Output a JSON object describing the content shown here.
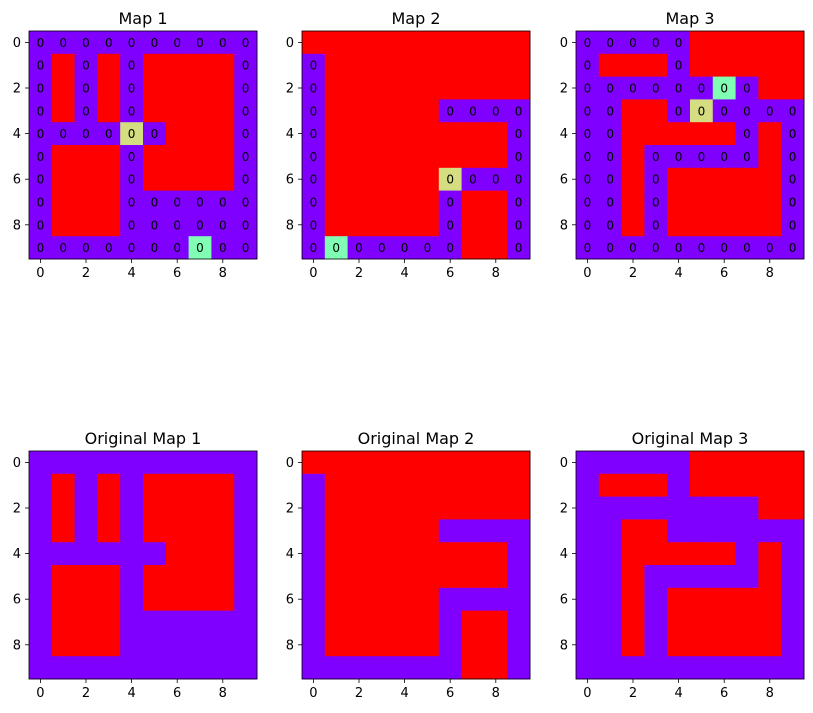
{
  "chart_data": [
    {
      "type": "heatmap",
      "title": "Map 1",
      "xticks": [
        "0",
        "2",
        "4",
        "6",
        "8"
      ],
      "yticks": [
        "0",
        "2",
        "4",
        "6",
        "8"
      ],
      "grid": [
        [
          1,
          1,
          1,
          1,
          1,
          1,
          1,
          1,
          1,
          1
        ],
        [
          1,
          2,
          1,
          2,
          1,
          2,
          2,
          2,
          2,
          1
        ],
        [
          1,
          2,
          1,
          2,
          1,
          2,
          2,
          2,
          2,
          1
        ],
        [
          1,
          2,
          1,
          2,
          1,
          2,
          2,
          2,
          2,
          1
        ],
        [
          1,
          1,
          1,
          1,
          4,
          1,
          2,
          2,
          2,
          1
        ],
        [
          1,
          2,
          2,
          2,
          1,
          2,
          2,
          2,
          2,
          1
        ],
        [
          1,
          2,
          2,
          2,
          1,
          2,
          2,
          2,
          2,
          1
        ],
        [
          1,
          2,
          2,
          2,
          1,
          1,
          1,
          1,
          1,
          1
        ],
        [
          1,
          2,
          2,
          2,
          1,
          1,
          1,
          1,
          1,
          1
        ],
        [
          1,
          1,
          1,
          1,
          1,
          1,
          1,
          3,
          1,
          1
        ]
      ],
      "cell_label": "0",
      "colors": {
        "1": "#8000ff",
        "2": "#ff0000",
        "3": "#80ffb4",
        "4": "#d4dd80"
      }
    },
    {
      "type": "heatmap",
      "title": "Map 2",
      "xticks": [
        "0",
        "2",
        "4",
        "6",
        "8"
      ],
      "yticks": [
        "0",
        "2",
        "4",
        "6",
        "8"
      ],
      "grid": [
        [
          2,
          2,
          2,
          2,
          2,
          2,
          2,
          2,
          2,
          2
        ],
        [
          1,
          2,
          2,
          2,
          2,
          2,
          2,
          2,
          2,
          2
        ],
        [
          1,
          2,
          2,
          2,
          2,
          2,
          2,
          2,
          2,
          2
        ],
        [
          1,
          2,
          2,
          2,
          2,
          2,
          1,
          1,
          1,
          1
        ],
        [
          1,
          2,
          2,
          2,
          2,
          2,
          2,
          2,
          2,
          1
        ],
        [
          1,
          2,
          2,
          2,
          2,
          2,
          2,
          2,
          2,
          1
        ],
        [
          1,
          2,
          2,
          2,
          2,
          2,
          4,
          1,
          1,
          1
        ],
        [
          1,
          2,
          2,
          2,
          2,
          2,
          1,
          2,
          2,
          1
        ],
        [
          1,
          2,
          2,
          2,
          2,
          2,
          1,
          2,
          2,
          1
        ],
        [
          1,
          3,
          1,
          1,
          1,
          1,
          1,
          2,
          2,
          1
        ]
      ],
      "cell_label": "0",
      "colors": {
        "1": "#8000ff",
        "2": "#ff0000",
        "3": "#80ffb4",
        "4": "#d4dd80"
      }
    },
    {
      "type": "heatmap",
      "title": "Map 3",
      "xticks": [
        "0",
        "2",
        "4",
        "6",
        "8"
      ],
      "yticks": [
        "0",
        "2",
        "4",
        "6",
        "8"
      ],
      "grid": [
        [
          1,
          1,
          1,
          1,
          1,
          2,
          2,
          2,
          2,
          2
        ],
        [
          1,
          2,
          2,
          2,
          1,
          2,
          2,
          2,
          2,
          2
        ],
        [
          1,
          1,
          1,
          1,
          1,
          1,
          3,
          1,
          2,
          2
        ],
        [
          1,
          1,
          2,
          2,
          1,
          4,
          1,
          1,
          1,
          1
        ],
        [
          1,
          1,
          2,
          2,
          2,
          2,
          2,
          1,
          2,
          1
        ],
        [
          1,
          1,
          2,
          1,
          1,
          1,
          1,
          1,
          2,
          1
        ],
        [
          1,
          1,
          2,
          1,
          2,
          2,
          2,
          2,
          2,
          1
        ],
        [
          1,
          1,
          2,
          1,
          2,
          2,
          2,
          2,
          2,
          1
        ],
        [
          1,
          1,
          2,
          1,
          2,
          2,
          2,
          2,
          2,
          1
        ],
        [
          1,
          1,
          1,
          1,
          1,
          1,
          1,
          1,
          1,
          1
        ]
      ],
      "cell_label": "0",
      "colors": {
        "1": "#8000ff",
        "2": "#ff0000",
        "3": "#80ffb4",
        "4": "#d4dd80"
      }
    },
    {
      "type": "heatmap",
      "title": "Original Map 1",
      "xticks": [
        "0",
        "2",
        "4",
        "6",
        "8"
      ],
      "yticks": [
        "0",
        "2",
        "4",
        "6",
        "8"
      ],
      "grid": [
        [
          1,
          1,
          1,
          1,
          1,
          1,
          1,
          1,
          1,
          1
        ],
        [
          1,
          2,
          1,
          2,
          1,
          2,
          2,
          2,
          2,
          1
        ],
        [
          1,
          2,
          1,
          2,
          1,
          2,
          2,
          2,
          2,
          1
        ],
        [
          1,
          2,
          1,
          2,
          1,
          2,
          2,
          2,
          2,
          1
        ],
        [
          1,
          1,
          1,
          1,
          1,
          1,
          2,
          2,
          2,
          1
        ],
        [
          1,
          2,
          2,
          2,
          1,
          2,
          2,
          2,
          2,
          1
        ],
        [
          1,
          2,
          2,
          2,
          1,
          2,
          2,
          2,
          2,
          1
        ],
        [
          1,
          2,
          2,
          2,
          1,
          1,
          1,
          1,
          1,
          1
        ],
        [
          1,
          2,
          2,
          2,
          1,
          1,
          1,
          1,
          1,
          1
        ],
        [
          1,
          1,
          1,
          1,
          1,
          1,
          1,
          1,
          1,
          1
        ]
      ],
      "colors": {
        "1": "#8000ff",
        "2": "#ff0000"
      }
    },
    {
      "type": "heatmap",
      "title": "Original Map 2",
      "xticks": [
        "0",
        "2",
        "4",
        "6",
        "8"
      ],
      "yticks": [
        "0",
        "2",
        "4",
        "6",
        "8"
      ],
      "grid": [
        [
          2,
          2,
          2,
          2,
          2,
          2,
          2,
          2,
          2,
          2
        ],
        [
          1,
          2,
          2,
          2,
          2,
          2,
          2,
          2,
          2,
          2
        ],
        [
          1,
          2,
          2,
          2,
          2,
          2,
          2,
          2,
          2,
          2
        ],
        [
          1,
          2,
          2,
          2,
          2,
          2,
          1,
          1,
          1,
          1
        ],
        [
          1,
          2,
          2,
          2,
          2,
          2,
          2,
          2,
          2,
          1
        ],
        [
          1,
          2,
          2,
          2,
          2,
          2,
          2,
          2,
          2,
          1
        ],
        [
          1,
          2,
          2,
          2,
          2,
          2,
          1,
          1,
          1,
          1
        ],
        [
          1,
          2,
          2,
          2,
          2,
          2,
          1,
          2,
          2,
          1
        ],
        [
          1,
          2,
          2,
          2,
          2,
          2,
          1,
          2,
          2,
          1
        ],
        [
          1,
          1,
          1,
          1,
          1,
          1,
          1,
          2,
          2,
          1
        ]
      ],
      "colors": {
        "1": "#8000ff",
        "2": "#ff0000"
      }
    },
    {
      "type": "heatmap",
      "title": "Original Map 3",
      "xticks": [
        "0",
        "2",
        "4",
        "6",
        "8"
      ],
      "yticks": [
        "0",
        "2",
        "4",
        "6",
        "8"
      ],
      "grid": [
        [
          1,
          1,
          1,
          1,
          1,
          2,
          2,
          2,
          2,
          2
        ],
        [
          1,
          2,
          2,
          2,
          1,
          2,
          2,
          2,
          2,
          2
        ],
        [
          1,
          1,
          1,
          1,
          1,
          1,
          1,
          1,
          2,
          2
        ],
        [
          1,
          1,
          2,
          2,
          1,
          1,
          1,
          1,
          1,
          1
        ],
        [
          1,
          1,
          2,
          2,
          2,
          2,
          2,
          1,
          2,
          1
        ],
        [
          1,
          1,
          2,
          1,
          1,
          1,
          1,
          1,
          2,
          1
        ],
        [
          1,
          1,
          2,
          1,
          2,
          2,
          2,
          2,
          2,
          1
        ],
        [
          1,
          1,
          2,
          1,
          2,
          2,
          2,
          2,
          2,
          1
        ],
        [
          1,
          1,
          2,
          1,
          2,
          2,
          2,
          2,
          2,
          1
        ],
        [
          1,
          1,
          1,
          1,
          1,
          1,
          1,
          1,
          1,
          1
        ]
      ],
      "colors": {
        "1": "#8000ff",
        "2": "#ff0000"
      }
    }
  ]
}
